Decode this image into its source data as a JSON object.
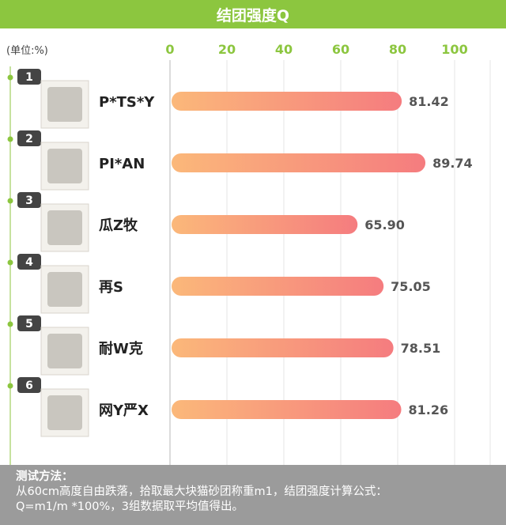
{
  "header": {
    "title": "结团强度Q"
  },
  "unit_label": "(单位:%)",
  "chart_data": {
    "type": "bar",
    "orientation": "horizontal",
    "title": "结团强度Q",
    "categories": [
      "P*TS*Y",
      "PI*AN",
      "瓜Z牧",
      "再S",
      "耐W克",
      "网Y严X"
    ],
    "ranks": [
      "1",
      "2",
      "3",
      "4",
      "5",
      "6"
    ],
    "values": [
      81.42,
      89.74,
      65.9,
      75.05,
      78.51,
      81.26
    ],
    "value_labels": [
      "81.42",
      "89.74",
      "65.90",
      "75.05",
      "78.51",
      "81.26"
    ],
    "xlim": [
      0,
      100
    ],
    "x_ticks": [
      0,
      20,
      40,
      60,
      80,
      100
    ],
    "bar_gradient": [
      "#fbb87a",
      "#f57c7f"
    ],
    "accent_color": "#8cc63f"
  },
  "footer": {
    "title": "测试方法：",
    "line1": "从60cm高度自由跌落，拾取最大块猫砂团称重m1，结团强度计算公式：",
    "line2": "Q=m1/m *100%，3组数据取平均值得出。"
  }
}
